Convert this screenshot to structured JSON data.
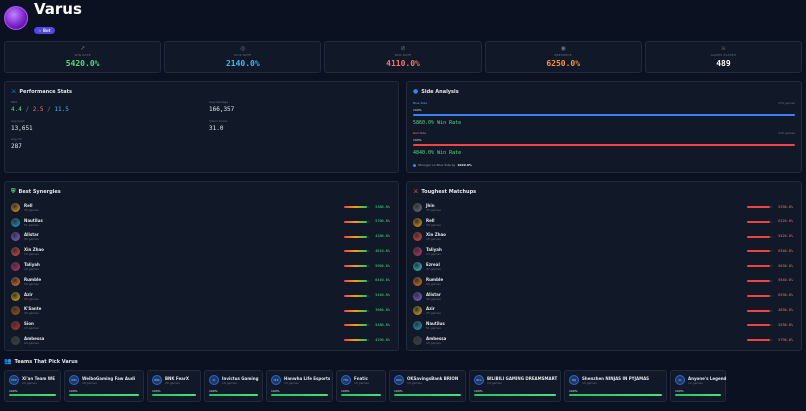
{
  "header": {
    "champion": "Varus",
    "role": "☆ Bot"
  },
  "stats": [
    {
      "icon": "trend-up-icon",
      "glyph": "↗",
      "label": "WIN RATE",
      "value": "5420.0%",
      "color": "#4ade80"
    },
    {
      "icon": "target-icon",
      "glyph": "◎",
      "label": "PICK RATE",
      "value": "2140.0%",
      "color": "#38bdf8"
    },
    {
      "icon": "ban-icon",
      "glyph": "⊘",
      "label": "BAN RATE",
      "value": "4110.0%",
      "color": "#f87171"
    },
    {
      "icon": "presence-icon",
      "glyph": "◉",
      "label": "PRESENCE",
      "value": "6250.0%",
      "color": "#fb923c"
    },
    {
      "icon": "crossed-swords-icon",
      "glyph": "⚔",
      "label": "GAMES PLAYED",
      "value": "489",
      "color": "#ffffff"
    }
  ],
  "performance": {
    "title": "Performance Stats",
    "kda_label": "KDA",
    "kda": {
      "k": "4.4",
      "d": "2.5",
      "a": "11.5",
      "sep": " / "
    },
    "avg_damage_label": "Avg Damage",
    "avg_damage": "166,357",
    "avg_gold_label": "Avg Gold",
    "avg_gold": "13,651",
    "vision_label": "Vision Score",
    "vision": "31.0",
    "avg_cs_label": "Avg CS",
    "avg_cs": "287"
  },
  "side": {
    "title": "Side Analysis",
    "blue_label": "Blue Side",
    "blue_games": "274 games",
    "blue_pct": "100%",
    "blue_fill": 1.0,
    "blue_winrate": "5860.0% Win Rate",
    "red_label": "Red Side",
    "red_games": "215 games",
    "red_pct": "100%",
    "red_fill": 1.0,
    "red_winrate": "4840.0% Win Rate",
    "note_prefix": "Stronger on Blue Side by ",
    "note_value": "1020.0%"
  },
  "synergies": {
    "title": "Best Synergies",
    "items": [
      {
        "name": "Rell",
        "games": "33 games",
        "winrate": "5380.0%",
        "fill": 0.9,
        "color": "#f59e0b"
      },
      {
        "name": "Nautilus",
        "games": "51 games",
        "winrate": "5760.0%",
        "fill": 0.9,
        "color": "#0ea5e9"
      },
      {
        "name": "Alistar",
        "games": "30 games",
        "winrate": "4280.0%",
        "fill": 0.9,
        "color": "#8b5cf6"
      },
      {
        "name": "Xin Zhao",
        "games": "15 games",
        "winrate": "4810.0%",
        "fill": 0.9,
        "color": "#ef4444"
      },
      {
        "name": "Taliyah",
        "games": "19 games",
        "winrate": "5960.0%",
        "fill": 0.9,
        "color": "#db2777"
      },
      {
        "name": "Rumble",
        "games": "59 games",
        "winrate": "6440.0%",
        "fill": 0.9,
        "color": "#f97316"
      },
      {
        "name": "Azir",
        "games": "25 games",
        "winrate": "5440.0%",
        "fill": 0.9,
        "color": "#eab308"
      },
      {
        "name": "K'Sante",
        "games": "33 games",
        "winrate": "3980.0%",
        "fill": 0.9,
        "color": "#b45309"
      },
      {
        "name": "Sion",
        "games": "13 games",
        "winrate": "5480.0%",
        "fill": 0.9,
        "color": "#dc2626"
      },
      {
        "name": "Ambessa",
        "games": "24 games",
        "winrate": "4290.0%",
        "fill": 0.9,
        "color": "#374151"
      }
    ]
  },
  "matchups": {
    "title": "Toughest Matchups",
    "items": [
      {
        "name": "Jhin",
        "games": "35 games",
        "winrate": "5330.0%",
        "fill": 0.9,
        "color": "#6b7280"
      },
      {
        "name": "Rell",
        "games": "33 games",
        "winrate": "6120.0%",
        "fill": 0.9,
        "color": "#f59e0b"
      },
      {
        "name": "Xin Zhao",
        "games": "15 games",
        "winrate": "5420.0%",
        "fill": 0.9,
        "color": "#ef4444"
      },
      {
        "name": "Taliyah",
        "games": "13 games",
        "winrate": "6340.0%",
        "fill": 0.9,
        "color": "#db2777"
      },
      {
        "name": "Ezreal",
        "games": "47 games",
        "winrate": "5630.0%",
        "fill": 0.9,
        "color": "#22d3ee"
      },
      {
        "name": "Rumble",
        "games": "59 games",
        "winrate": "5540.0%",
        "fill": 0.9,
        "color": "#f97316"
      },
      {
        "name": "Alistar",
        "games": "30 games",
        "winrate": "6530.0%",
        "fill": 0.9,
        "color": "#8b5cf6"
      },
      {
        "name": "Azir",
        "games": "25 games",
        "winrate": "4830.0%",
        "fill": 0.9,
        "color": "#eab308"
      },
      {
        "name": "Nautilus",
        "games": "51 games",
        "winrate": "5530.0%",
        "fill": 0.9,
        "color": "#0ea5e9"
      },
      {
        "name": "Ambessa",
        "games": "24 games",
        "winrate": "5790.0%",
        "fill": 0.9,
        "color": "#374151"
      }
    ]
  },
  "teams": {
    "title": "Teams That Pick Varus",
    "items": [
      {
        "abbr": "ETW",
        "name": "Xi'an Team WE",
        "games": "23 games",
        "pct": "100%",
        "fill": 1.0
      },
      {
        "abbr": "WFA",
        "name": "WeiboGaming Faw Audi",
        "games": "18 games",
        "pct": "100%",
        "fill": 1.0
      },
      {
        "abbr": "BNK",
        "name": "BNK FearX",
        "games": "20 games",
        "pct": "100%",
        "fill": 1.0
      },
      {
        "abbr": "IG",
        "name": "Invictus Gaming",
        "games": "16 games",
        "pct": "100%",
        "fill": 1.0
      },
      {
        "abbr": "HLE",
        "name": "Hanwha Life Esports",
        "games": "15 games",
        "pct": "100%",
        "fill": 1.0
      },
      {
        "abbr": "FNC",
        "name": "Fnatic",
        "games": "15 games",
        "pct": "100%",
        "fill": 1.0
      },
      {
        "abbr": "BRO",
        "name": "OKSavingsBank BRION",
        "games": "14 games",
        "pct": "100%",
        "fill": 1.0
      },
      {
        "abbr": "BLG",
        "name": "BILIBILI GAMING DREAMSMART",
        "games": "14 games",
        "pct": "100%",
        "fill": 1.0
      },
      {
        "abbr": "SNJ",
        "name": "Shenzhen NINJAS IN PYJAMAS",
        "games": "13 games",
        "pct": "100%",
        "fill": 1.0
      },
      {
        "abbr": "AL",
        "name": "Anyone's Legend",
        "games": "12 games",
        "pct": "100%",
        "fill": 1.0
      }
    ]
  }
}
